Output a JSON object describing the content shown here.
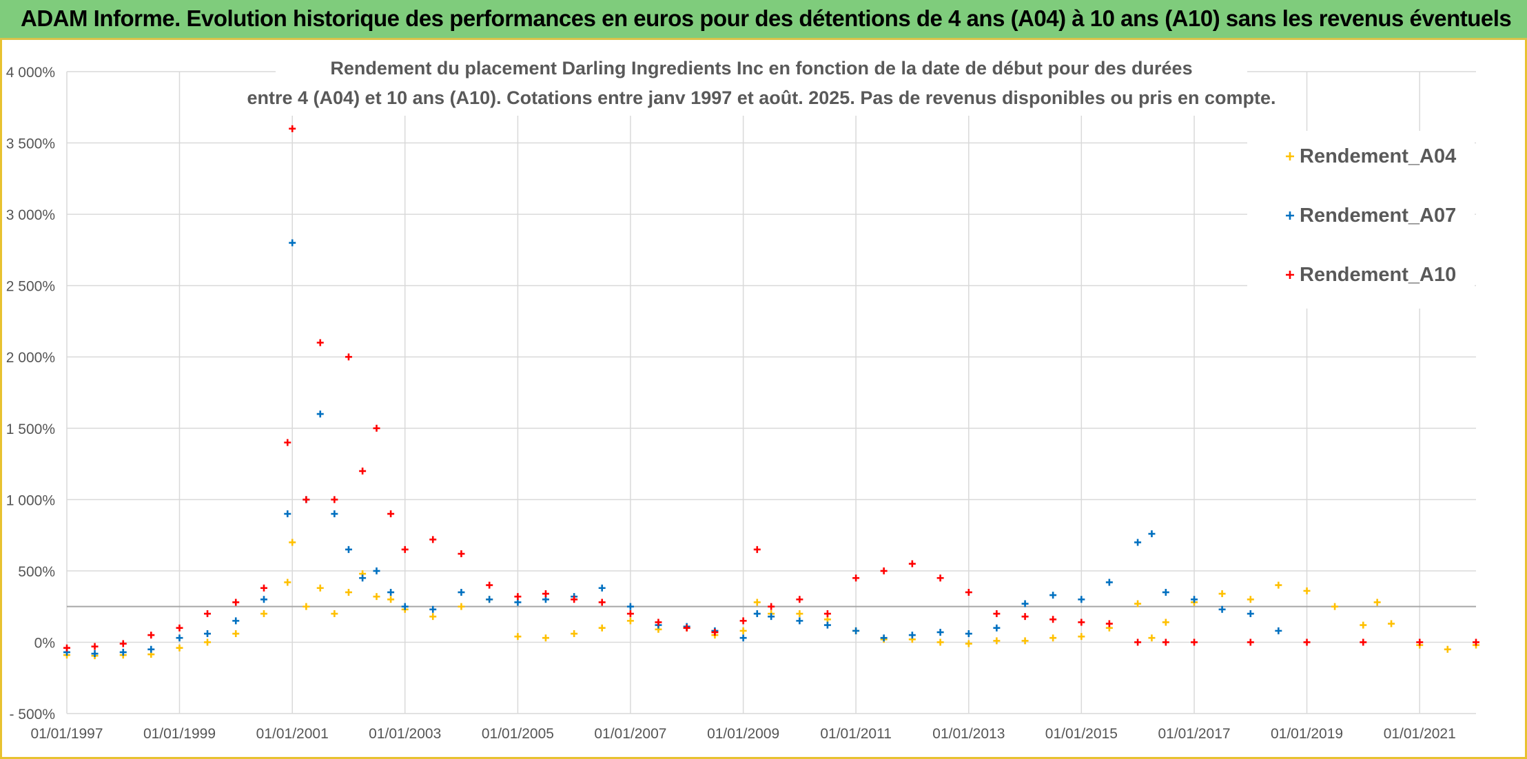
{
  "banner": {
    "title": "ADAM Informe. Evolution historique des performances en euros pour des détentions de 4 ans (A04) à 10 ans (A10) sans les revenus éventuels"
  },
  "colors": {
    "banner_bg": "#7fcc7c",
    "frame": "#e8c230",
    "A04": "#ffc000",
    "A07": "#0070c0",
    "A10": "#ff0000",
    "grid": "#d9d9d9"
  },
  "chart_data": {
    "type": "scatter",
    "title_lines": [
      "Rendement du placement Darling Ingredients Inc en fonction de la date de début pour des durées",
      "entre 4 (A04) et 10 ans (A10). Cotations entre janv 1997 et août. 2025. Pas de revenus disponibles ou pris en compte."
    ],
    "xlabel": "",
    "ylabel": "",
    "x_tick_labels": [
      "01/01/1997",
      "01/01/1999",
      "01/01/2001",
      "01/01/2003",
      "01/01/2005",
      "01/01/2007",
      "01/01/2009",
      "01/01/2011",
      "01/01/2013",
      "01/01/2015",
      "01/01/2017",
      "01/01/2019",
      "01/01/2021"
    ],
    "xlim": [
      "1997-01-01",
      "2022-01-01"
    ],
    "y_tick_labels": [
      "- 500%",
      "0%",
      "500%",
      "1 000%",
      "1 500%",
      "2 000%",
      "2 500%",
      "3 000%",
      "3 500%",
      "4 000%"
    ],
    "ylim": [
      -500,
      4000
    ],
    "reference_line_y": 250,
    "grid": true,
    "legend_position": "top-right",
    "series": [
      {
        "name": "Rendement_A04",
        "color": "#ffc000",
        "points": [
          [
            "1997-01-01",
            -90
          ],
          [
            "1997-07-01",
            -95
          ],
          [
            "1998-01-01",
            -90
          ],
          [
            "1998-07-01",
            -85
          ],
          [
            "1999-01-01",
            -40
          ],
          [
            "1999-07-01",
            0
          ],
          [
            "2000-01-01",
            60
          ],
          [
            "2000-07-01",
            200
          ],
          [
            "2000-12-01",
            420
          ],
          [
            "2001-01-01",
            700
          ],
          [
            "2001-04-01",
            250
          ],
          [
            "2001-07-01",
            380
          ],
          [
            "2001-10-01",
            200
          ],
          [
            "2002-01-01",
            350
          ],
          [
            "2002-04-01",
            480
          ],
          [
            "2002-07-01",
            320
          ],
          [
            "2002-10-01",
            300
          ],
          [
            "2003-01-01",
            230
          ],
          [
            "2003-07-01",
            180
          ],
          [
            "2004-01-01",
            250
          ],
          [
            "2004-07-01",
            300
          ],
          [
            "2005-01-01",
            40
          ],
          [
            "2005-07-01",
            30
          ],
          [
            "2006-01-01",
            60
          ],
          [
            "2006-07-01",
            100
          ],
          [
            "2007-01-01",
            150
          ],
          [
            "2007-07-01",
            90
          ],
          [
            "2008-01-01",
            100
          ],
          [
            "2008-07-01",
            50
          ],
          [
            "2009-01-01",
            80
          ],
          [
            "2009-04-01",
            280
          ],
          [
            "2009-07-01",
            200
          ],
          [
            "2010-01-01",
            200
          ],
          [
            "2010-07-01",
            160
          ],
          [
            "2011-01-01",
            80
          ],
          [
            "2011-07-01",
            20
          ],
          [
            "2012-01-01",
            20
          ],
          [
            "2012-07-01",
            0
          ],
          [
            "2013-01-01",
            -10
          ],
          [
            "2013-07-01",
            10
          ],
          [
            "2014-01-01",
            10
          ],
          [
            "2014-07-01",
            30
          ],
          [
            "2015-01-01",
            40
          ],
          [
            "2015-07-01",
            100
          ],
          [
            "2016-01-01",
            270
          ],
          [
            "2016-04-01",
            30
          ],
          [
            "2016-07-01",
            140
          ],
          [
            "2017-01-01",
            280
          ],
          [
            "2017-07-01",
            340
          ],
          [
            "2018-01-01",
            300
          ],
          [
            "2018-07-01",
            400
          ],
          [
            "2019-01-01",
            360
          ],
          [
            "2019-07-01",
            250
          ],
          [
            "2020-01-01",
            120
          ],
          [
            "2020-04-01",
            280
          ],
          [
            "2020-07-01",
            130
          ],
          [
            "2021-01-01",
            -20
          ],
          [
            "2021-07-01",
            -50
          ],
          [
            "2022-01-01",
            -20
          ]
        ]
      },
      {
        "name": "Rendement_A07",
        "color": "#0070c0",
        "points": [
          [
            "1997-01-01",
            -70
          ],
          [
            "1997-07-01",
            -80
          ],
          [
            "1998-01-01",
            -70
          ],
          [
            "1998-07-01",
            -50
          ],
          [
            "1999-01-01",
            30
          ],
          [
            "1999-07-01",
            60
          ],
          [
            "2000-01-01",
            150
          ],
          [
            "2000-07-01",
            300
          ],
          [
            "2000-12-01",
            900
          ],
          [
            "2001-01-01",
            2800
          ],
          [
            "2001-04-01",
            1000
          ],
          [
            "2001-07-01",
            1600
          ],
          [
            "2001-10-01",
            900
          ],
          [
            "2002-01-01",
            650
          ],
          [
            "2002-04-01",
            450
          ],
          [
            "2002-07-01",
            500
          ],
          [
            "2002-10-01",
            350
          ],
          [
            "2003-01-01",
            250
          ],
          [
            "2003-07-01",
            230
          ],
          [
            "2004-01-01",
            350
          ],
          [
            "2004-07-01",
            300
          ],
          [
            "2005-01-01",
            280
          ],
          [
            "2005-07-01",
            300
          ],
          [
            "2006-01-01",
            320
          ],
          [
            "2006-07-01",
            380
          ],
          [
            "2007-01-01",
            250
          ],
          [
            "2007-07-01",
            120
          ],
          [
            "2008-01-01",
            110
          ],
          [
            "2008-07-01",
            80
          ],
          [
            "2009-01-01",
            30
          ],
          [
            "2009-04-01",
            200
          ],
          [
            "2009-07-01",
            180
          ],
          [
            "2010-01-01",
            150
          ],
          [
            "2010-07-01",
            120
          ],
          [
            "2011-01-01",
            80
          ],
          [
            "2011-07-01",
            30
          ],
          [
            "2012-01-01",
            50
          ],
          [
            "2012-07-01",
            70
          ],
          [
            "2013-01-01",
            60
          ],
          [
            "2013-07-01",
            100
          ],
          [
            "2014-01-01",
            270
          ],
          [
            "2014-07-01",
            330
          ],
          [
            "2015-01-01",
            300
          ],
          [
            "2015-07-01",
            420
          ],
          [
            "2016-01-01",
            700
          ],
          [
            "2016-04-01",
            760
          ],
          [
            "2016-07-01",
            350
          ],
          [
            "2017-01-01",
            300
          ],
          [
            "2017-07-01",
            230
          ],
          [
            "2018-01-01",
            200
          ],
          [
            "2018-07-01",
            80
          ]
        ]
      },
      {
        "name": "Rendement_A10",
        "color": "#ff0000",
        "points": [
          [
            "1997-01-01",
            -40
          ],
          [
            "1997-07-01",
            -30
          ],
          [
            "1998-01-01",
            -10
          ],
          [
            "1998-07-01",
            50
          ],
          [
            "1999-01-01",
            100
          ],
          [
            "1999-07-01",
            200
          ],
          [
            "2000-01-01",
            280
          ],
          [
            "2000-07-01",
            380
          ],
          [
            "2000-12-01",
            1400
          ],
          [
            "2001-01-01",
            3600
          ],
          [
            "2001-04-01",
            1000
          ],
          [
            "2001-07-01",
            2100
          ],
          [
            "2001-10-01",
            1000
          ],
          [
            "2002-01-01",
            2000
          ],
          [
            "2002-04-01",
            1200
          ],
          [
            "2002-07-01",
            1500
          ],
          [
            "2002-10-01",
            900
          ],
          [
            "2003-01-01",
            650
          ],
          [
            "2003-07-01",
            720
          ],
          [
            "2004-01-01",
            620
          ],
          [
            "2004-07-01",
            400
          ],
          [
            "2005-01-01",
            320
          ],
          [
            "2005-07-01",
            340
          ],
          [
            "2006-01-01",
            300
          ],
          [
            "2006-07-01",
            280
          ],
          [
            "2007-01-01",
            200
          ],
          [
            "2007-07-01",
            140
          ],
          [
            "2008-01-01",
            100
          ],
          [
            "2008-07-01",
            70
          ],
          [
            "2009-01-01",
            150
          ],
          [
            "2009-04-01",
            650
          ],
          [
            "2009-07-01",
            250
          ],
          [
            "2010-01-01",
            300
          ],
          [
            "2010-07-01",
            200
          ],
          [
            "2011-01-01",
            450
          ],
          [
            "2011-07-01",
            500
          ],
          [
            "2012-01-01",
            550
          ],
          [
            "2012-07-01",
            450
          ],
          [
            "2013-01-01",
            350
          ],
          [
            "2013-07-01",
            200
          ],
          [
            "2014-01-01",
            180
          ],
          [
            "2014-07-01",
            160
          ],
          [
            "2015-01-01",
            140
          ],
          [
            "2015-07-01",
            130
          ],
          [
            "2016-01-01",
            0
          ],
          [
            "2016-07-01",
            0
          ],
          [
            "2017-01-01",
            0
          ],
          [
            "2018-01-01",
            0
          ],
          [
            "2019-01-01",
            0
          ],
          [
            "2020-01-01",
            0
          ],
          [
            "2021-01-01",
            0
          ],
          [
            "2022-01-01",
            0
          ]
        ]
      }
    ]
  }
}
